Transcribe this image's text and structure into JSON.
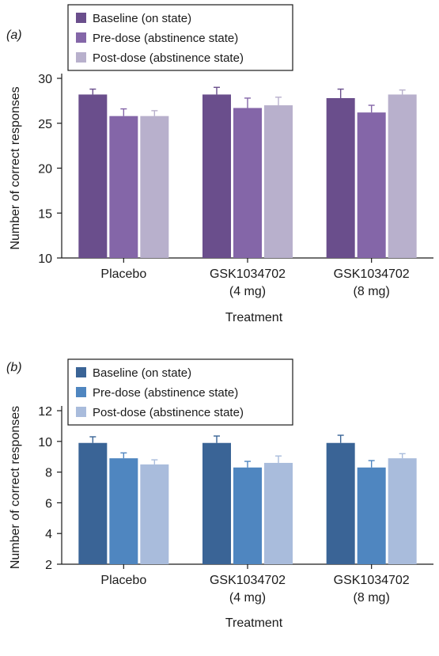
{
  "chart_data": [
    {
      "panel_label": "(a)",
      "type": "bar",
      "xlabel": "Treatment",
      "ylabel": "Number of correct responses",
      "ylim": [
        10,
        30
      ],
      "yticks": [
        10,
        15,
        20,
        25,
        30
      ],
      "categories": [
        [
          "Placebo"
        ],
        [
          "GSK1034702",
          "(4 mg)"
        ],
        [
          "GSK1034702",
          "(8 mg)"
        ]
      ],
      "grid": false,
      "legend": "top-left",
      "series": [
        {
          "name": "Baseline (on state)",
          "color": "#6a4e8c",
          "values": [
            28.2,
            28.2,
            27.8
          ],
          "errors": [
            0.6,
            0.8,
            1.0
          ]
        },
        {
          "name": "Pre-dose (abstinence state)",
          "color": "#8466a8",
          "values": [
            25.8,
            26.7,
            26.2
          ],
          "errors": [
            0.8,
            1.1,
            0.8
          ]
        },
        {
          "name": "Post-dose (abstinence state)",
          "color": "#b8b0cc",
          "values": [
            25.8,
            27.0,
            28.2
          ],
          "errors": [
            0.6,
            0.9,
            0.5
          ]
        }
      ]
    },
    {
      "panel_label": "(b)",
      "type": "bar",
      "xlabel": "Treatment",
      "ylabel": "Number of correct responses",
      "ylim": [
        2,
        12
      ],
      "yticks": [
        2,
        4,
        6,
        8,
        10,
        12
      ],
      "categories": [
        [
          "Placebo"
        ],
        [
          "GSK1034702",
          "(4 mg)"
        ],
        [
          "GSK1034702",
          "(8 mg)"
        ]
      ],
      "grid": false,
      "legend": "top-left",
      "series": [
        {
          "name": "Baseline (on state)",
          "color": "#3a6496",
          "values": [
            9.9,
            9.9,
            9.9
          ],
          "errors": [
            0.4,
            0.45,
            0.5
          ]
        },
        {
          "name": "Pre-dose (abstinence state)",
          "color": "#4f86c0",
          "values": [
            8.9,
            8.3,
            8.3
          ],
          "errors": [
            0.35,
            0.4,
            0.45
          ]
        },
        {
          "name": "Post-dose (abstinence state)",
          "color": "#a9bcdc",
          "values": [
            8.5,
            8.6,
            8.9
          ],
          "errors": [
            0.3,
            0.45,
            0.3
          ]
        }
      ]
    }
  ]
}
